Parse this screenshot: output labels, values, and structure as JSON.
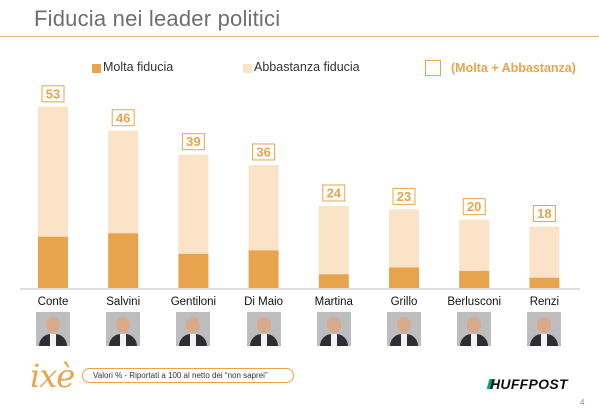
{
  "title": "Fiducia nei leader politici",
  "legend": {
    "molta": "Molta fiducia",
    "abbastanza": "Abbastanza fiducia",
    "total": "(Molta + Abbastanza)"
  },
  "colors": {
    "molta": "#e8a44c",
    "abbastanza": "#fbe3c8",
    "label_border": "#e8a44c",
    "label_text": "#e8a44c",
    "title": "#6e6e6e"
  },
  "chart_data": {
    "type": "bar",
    "stacked": true,
    "categories": [
      "Conte",
      "Salvini",
      "Gentiloni",
      "Di Maio",
      "Martina",
      "Grillo",
      "Berlusconi",
      "Renzi"
    ],
    "totals": [
      53,
      46,
      39,
      36,
      24,
      23,
      20,
      18
    ],
    "series": [
      {
        "name": "Molta fiducia",
        "values": [
          15,
          16,
          10,
          11,
          4,
          6,
          5,
          3
        ]
      },
      {
        "name": "Abbastanza fiducia",
        "values": [
          38,
          30,
          29,
          25,
          20,
          17,
          15,
          15
        ]
      }
    ],
    "ylim": [
      0,
      55
    ],
    "grid": false,
    "legend_position": "top"
  },
  "footer": {
    "logo": "ixè",
    "note": "Valori % - Riportati a 100 al netto dei “non saprei”",
    "brand": "HUFFPOST",
    "page": "4"
  }
}
